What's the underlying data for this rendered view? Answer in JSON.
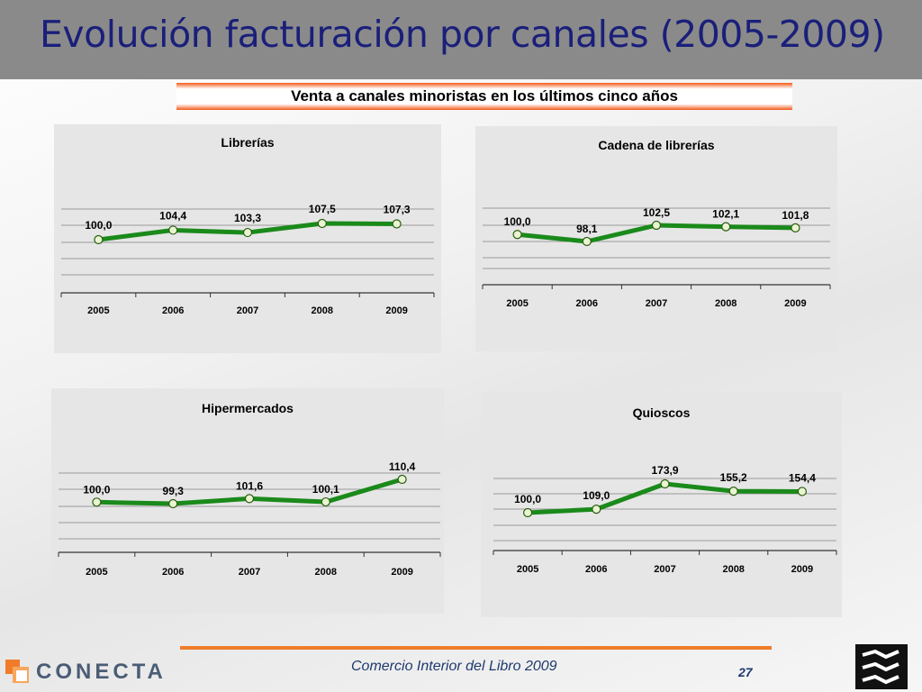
{
  "header": {
    "title": "Evolución facturación por canales (2005-2009)"
  },
  "subtitle": "Venta a canales minoristas en los últimos cinco años",
  "colors": {
    "line": "#1a8a1a",
    "marker_fill": "#e8f5d0",
    "title": "#1a1f7a",
    "accent": "#f07c2a"
  },
  "chart_data": [
    {
      "type": "line",
      "title": "Librerías",
      "categories": [
        "2005",
        "2006",
        "2007",
        "2008",
        "2009"
      ],
      "values": [
        100.0,
        104.4,
        103.3,
        107.5,
        107.3
      ],
      "labels": [
        "100,0",
        "104,4",
        "103,3",
        "107,5",
        "107,3"
      ],
      "grid": true
    },
    {
      "type": "line",
      "title": "Cadena de librerías",
      "categories": [
        "2005",
        "2006",
        "2007",
        "2008",
        "2009"
      ],
      "values": [
        100.0,
        98.1,
        102.5,
        102.1,
        101.8
      ],
      "labels": [
        "100,0",
        "98,1",
        "102,5",
        "102,1",
        "101,8"
      ],
      "grid": true
    },
    {
      "type": "line",
      "title": "Hipermercados",
      "categories": [
        "2005",
        "2006",
        "2007",
        "2008",
        "2009"
      ],
      "values": [
        100.0,
        99.3,
        101.6,
        100.1,
        110.4
      ],
      "labels": [
        "100,0",
        "99,3",
        "101,6",
        "100,1",
        "110,4"
      ],
      "grid": true
    },
    {
      "type": "line",
      "title": "Quioscos",
      "categories": [
        "2005",
        "2006",
        "2007",
        "2008",
        "2009"
      ],
      "values": [
        100.0,
        109.0,
        173.9,
        155.2,
        154.4
      ],
      "labels": [
        "100,0",
        "109,0",
        "173,9",
        "155,2",
        "154,4"
      ],
      "grid": true
    }
  ],
  "footer": {
    "text": "Comercio Interior del Libro 2009",
    "page": "27",
    "logo_text": "CONECTA"
  },
  "icons": {
    "logo": "conecta-logo-icon",
    "corner": "publisher-logo-icon"
  }
}
